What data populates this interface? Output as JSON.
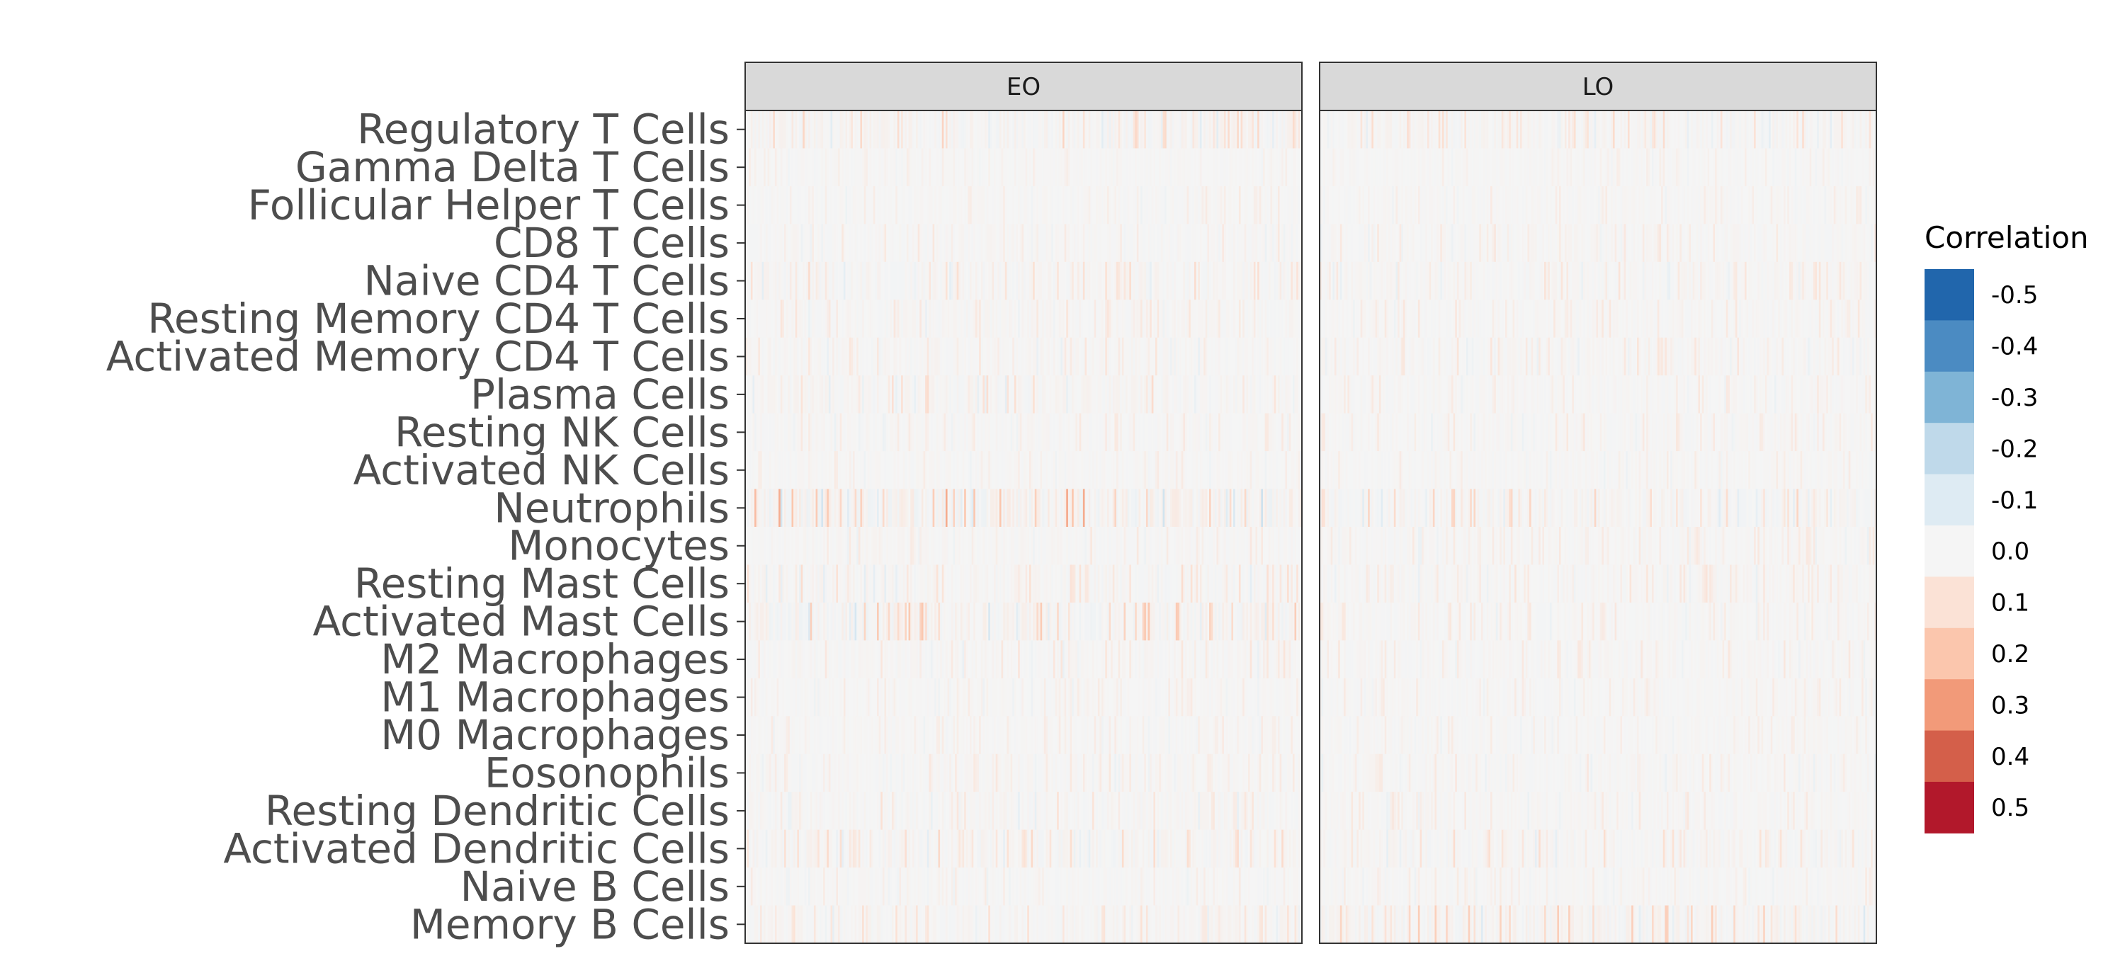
{
  "chart_data": {
    "type": "heatmap",
    "title": "",
    "xlabel": "",
    "ylabel": "",
    "facets": [
      "EO",
      "LO"
    ],
    "rows": [
      "Regulatory T Cells",
      "Gamma Delta T Cells",
      "Follicular Helper T Cells",
      "CD8 T Cells",
      "Naive CD4 T Cells",
      "Resting Memory CD4 T Cells",
      "Activated Memory CD4 T Cells",
      "Plasma Cells",
      "Resting NK Cells",
      "Activated NK Cells",
      "Neutrophils",
      "Monocytes",
      "Resting Mast Cells",
      "Activated Mast Cells",
      "M2 Macrophages",
      "M1 Macrophages",
      "M0 Macrophages",
      "Eosonophils",
      "Resting Dendritic Cells",
      "Activated Dendritic Cells",
      "Naive B Cells",
      "Memory B Cells"
    ],
    "columns_per_facet": 300,
    "value_range": [
      -0.5,
      0.5
    ],
    "row_typical_abs_correlation": {
      "EO": [
        0.1,
        0.03,
        0.04,
        0.05,
        0.08,
        0.06,
        0.06,
        0.08,
        0.05,
        0.04,
        0.18,
        0.05,
        0.08,
        0.14,
        0.06,
        0.04,
        0.04,
        0.05,
        0.07,
        0.09,
        0.04,
        0.07
      ],
      "LO": [
        0.08,
        0.03,
        0.04,
        0.05,
        0.06,
        0.05,
        0.06,
        0.05,
        0.05,
        0.04,
        0.1,
        0.05,
        0.06,
        0.05,
        0.05,
        0.04,
        0.04,
        0.05,
        0.05,
        0.08,
        0.04,
        0.12
      ]
    },
    "legend": {
      "title": "Correlation",
      "position": "right",
      "breaks": [
        "-0.5",
        "-0.4",
        "-0.3",
        "-0.2",
        "-0.1",
        "0.0",
        "0.1",
        "0.2",
        "0.3",
        "0.4",
        "0.5"
      ],
      "colors": [
        "#2166ac",
        "#4b8bc2",
        "#7fb4d6",
        "#bfd9ea",
        "#deebf3",
        "#f5f5f5",
        "#fbe2d6",
        "#fbc6ad",
        "#f29a79",
        "#d45f4a",
        "#b2182b"
      ]
    },
    "grid": false
  },
  "colors": {
    "panel_background": "#f7f7f7",
    "panel_border": "#333333",
    "strip_background": "#d9d9d9",
    "tick_text": "#4d4d4d"
  }
}
